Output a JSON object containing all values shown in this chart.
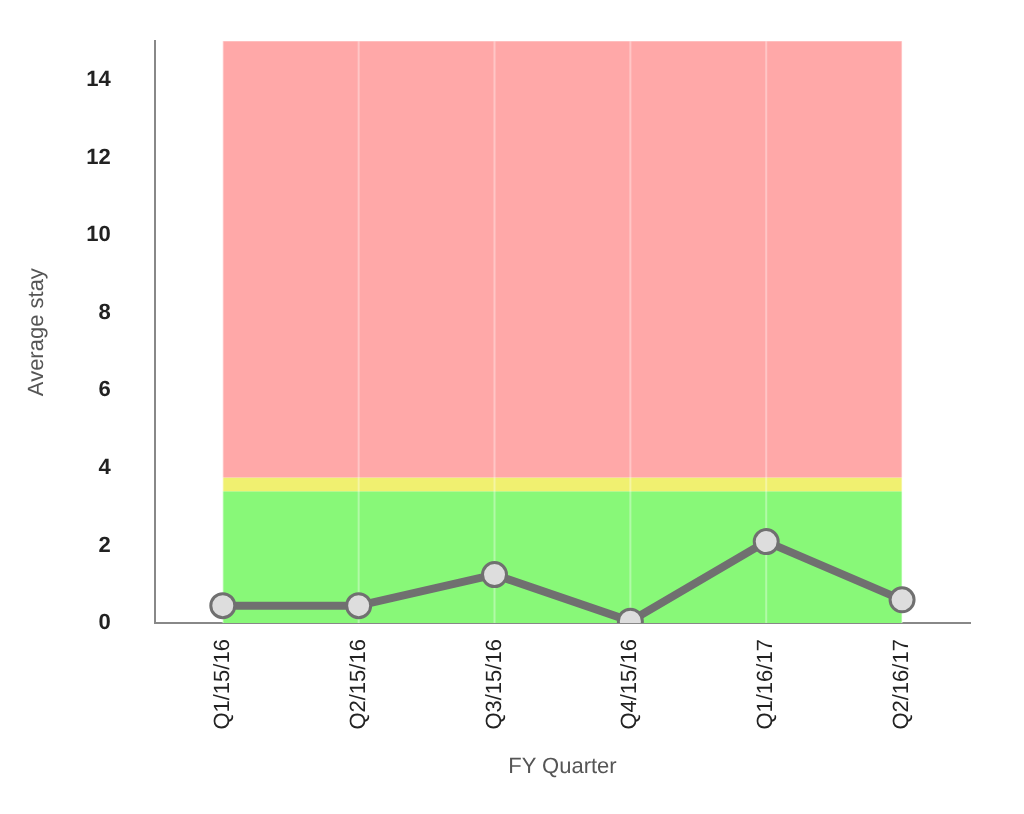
{
  "chart_data": {
    "type": "line",
    "xlabel": "FY Quarter",
    "ylabel": "Average stay",
    "categories": [
      "Q1/15/16",
      "Q2/15/16",
      "Q3/15/16",
      "Q4/15/16",
      "Q1/16/17",
      "Q2/16/17"
    ],
    "series": [
      {
        "color": "#707070",
        "values": [
          0.45,
          0.45,
          1.25,
          0.05,
          2.1,
          0.6
        ]
      }
    ],
    "ylim": [
      0,
      15
    ],
    "yticks": [
      0,
      2,
      4,
      6,
      8,
      10,
      12,
      14
    ],
    "grid": "x",
    "marker": "circle",
    "line_style": "solid",
    "legend": false,
    "bands": [
      {
        "axis": "y",
        "from": 0,
        "to": 3.4,
        "color": "#88f878"
      },
      {
        "axis": "y",
        "from": 3.4,
        "to": 3.75,
        "color": "#f0f070"
      },
      {
        "axis": "y",
        "from": 3.75,
        "to": 15,
        "color": "#ffa8a8"
      }
    ]
  }
}
